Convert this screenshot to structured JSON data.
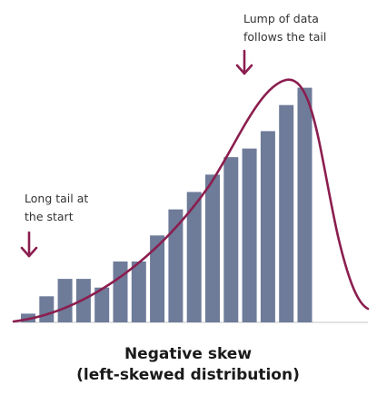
{
  "chart_data": {
    "type": "bar",
    "categories": [
      "",
      "",
      "",
      "",
      "",
      "",
      "",
      "",
      "",
      "",
      "",
      "",
      "",
      "",
      "",
      ""
    ],
    "values": [
      1,
      3,
      5,
      5,
      4,
      7,
      7,
      10,
      13,
      15,
      17,
      19,
      20,
      22,
      25,
      27
    ],
    "ylim": [
      0,
      28
    ],
    "caption_line1": "Negative skew",
    "caption_line2": "(left-skewed distribution)",
    "annotations": {
      "left": {
        "line1": "Long tail at",
        "line2": "the start"
      },
      "right": {
        "line1": "Lump of data",
        "line2": "follows the tail"
      }
    },
    "grid": false,
    "colors": {
      "bars": "#6e7b99",
      "curve": "#8b1e4f",
      "arrows": "#8b1e4f",
      "axis": "#d9d9d9"
    }
  }
}
